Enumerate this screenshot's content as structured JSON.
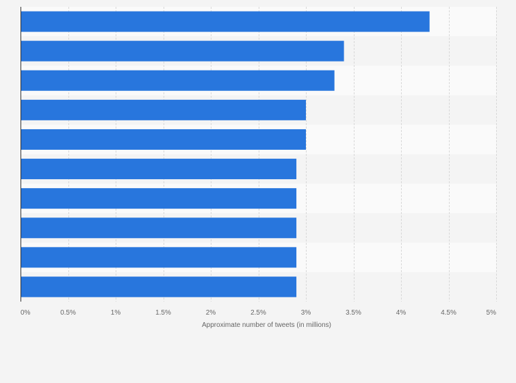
{
  "chart_data": {
    "type": "bar",
    "orientation": "horizontal",
    "xlabel": "Approximate number of tweets (in millions)",
    "ylabel": "",
    "xlim": [
      0,
      5
    ],
    "xticks": [
      0,
      0.5,
      1,
      1.5,
      2,
      2.5,
      3,
      3.5,
      4,
      4.5,
      5
    ],
    "xtick_labels": [
      "0%",
      "0.5%",
      "1%",
      "1.5%",
      "2%",
      "2.5%",
      "3%",
      "3.5%",
      "4%",
      "4.5%",
      "5%"
    ],
    "categories": [
      "",
      "",
      "",
      "",
      "",
      "",
      "",
      "",
      "",
      ""
    ],
    "values": [
      4.3,
      3.4,
      3.3,
      3.0,
      3.0,
      2.9,
      2.9,
      2.9,
      2.9,
      2.9
    ],
    "grid": true,
    "legend": "none",
    "colors": {
      "bar": "#2876dd",
      "band_light": "#fafafa",
      "band_dark": "#f4f4f4",
      "grid": "#d8d8d8",
      "axis": "#333333",
      "text": "#666666",
      "background": "#f4f4f4"
    }
  }
}
